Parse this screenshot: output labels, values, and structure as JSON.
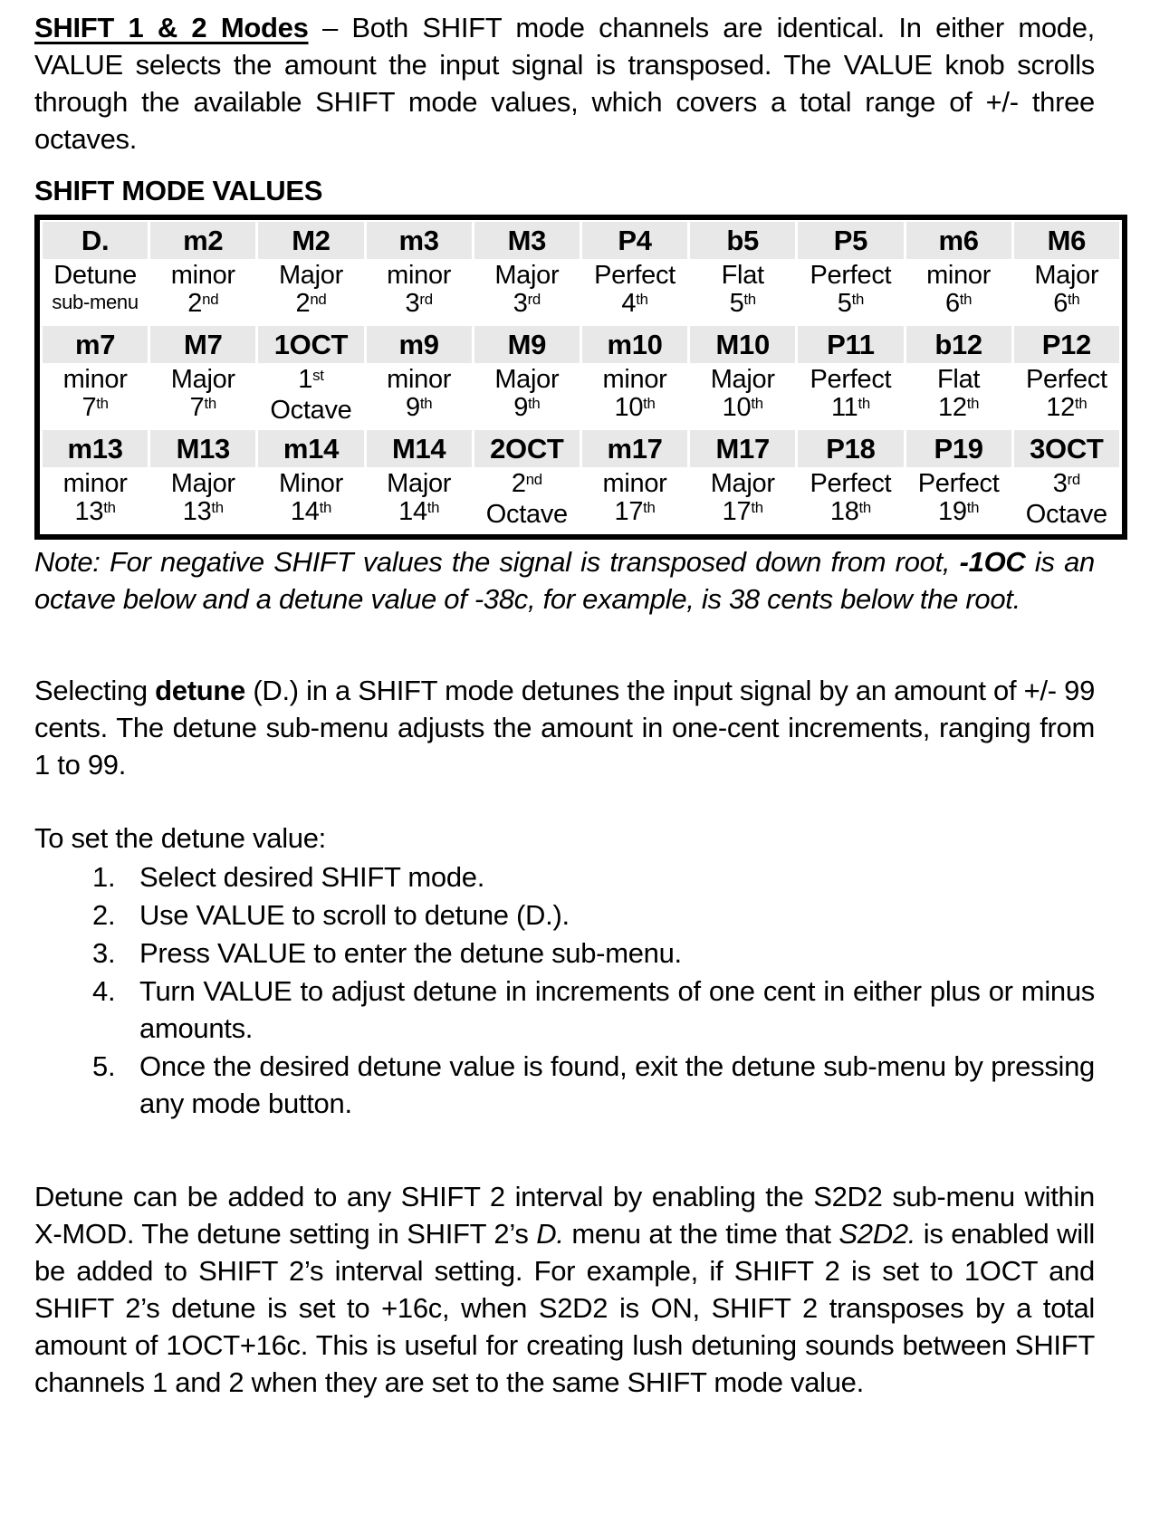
{
  "colors": {
    "page_bg": "#ffffff",
    "text": "#000000",
    "border": "#000000",
    "header_row_bg": "#e8e8e8"
  },
  "page": {
    "intro": [
      {
        "t": "SHIFT 1 & 2 Modes",
        "b": true,
        "u": true
      },
      {
        "t": " – Both SHIFT mode channels are identical. In either mode, VALUE selects the amount the input signal is transposed. The VALUE knob scrolls through the available SHIFT mode values, which covers a total range of +/- three octaves."
      }
    ],
    "table_title": "SHIFT MODE VALUES",
    "note": [
      {
        "t": "Note: For negative SHIFT values the signal is transposed down from root, ",
        "i": true
      },
      {
        "t": "-1OC",
        "b": true,
        "i": true
      },
      {
        "t": " is an octave below and a detune value of -38c, for example, is 38 cents below the root.",
        "i": true
      }
    ],
    "detune_paragraph": [
      {
        "t": "Selecting "
      },
      {
        "t": "detune",
        "b": true
      },
      {
        "t": " (D.) in a SHIFT mode detunes the input signal by an amount of +/- 99 cents. The detune sub-menu adjusts the amount in one-cent increments, ranging from 1 to 99."
      }
    ],
    "steps_intro": "To set the detune value:",
    "steps": [
      "Select desired SHIFT mode.",
      "Use VALUE to scroll to detune (D.).",
      "Press VALUE to enter the detune sub-menu.",
      "Turn VALUE to adjust detune in increments of one cent in either plus or minus amounts.",
      "Once the desired detune value is found, exit the detune sub-menu by pressing any mode button."
    ],
    "s2d2_paragraph": [
      {
        "t": "Detune can be added to any SHIFT 2 interval by enabling the S2D2 sub-menu within X-MOD. The detune setting in SHIFT 2’s "
      },
      {
        "t": "D.",
        "i": true
      },
      {
        "t": " menu at the time that "
      },
      {
        "t": "S2D2.",
        "i": true
      },
      {
        "t": " is enabled will be added to SHIFT 2’s interval setting. For example, if SHIFT 2 is set to 1OCT and SHIFT 2’s detune is set to +16c, when S2D2 is ON, SHIFT 2 transposes by a total amount of 1OCT+16c. This is useful for creating lush detuning sounds between SHIFT channels 1 and 2 when they are set to the same SHIFT mode value."
      }
    ]
  },
  "table": {
    "groups": [
      {
        "codes": [
          "D.",
          "m2",
          "M2",
          "m3",
          "M3",
          "P4",
          "b5",
          "P5",
          "m6",
          "M6"
        ],
        "descriptions": [
          {
            "lines": [
              "Detune",
              "sub-menu"
            ],
            "small_line2": true
          },
          {
            "lines": [
              "minor",
              "2[nd]"
            ]
          },
          {
            "lines": [
              "Major",
              "2[nd]"
            ]
          },
          {
            "lines": [
              "minor",
              "3[rd]"
            ]
          },
          {
            "lines": [
              "Major",
              "3[rd]"
            ]
          },
          {
            "lines": [
              "Perfect",
              "4[th]"
            ]
          },
          {
            "lines": [
              "Flat",
              "5[th]"
            ]
          },
          {
            "lines": [
              "Perfect",
              "5[th]"
            ]
          },
          {
            "lines": [
              "minor",
              "6[th]"
            ]
          },
          {
            "lines": [
              "Major",
              "6[th]"
            ]
          }
        ]
      },
      {
        "codes": [
          "m7",
          "M7",
          "1OCT",
          "m9",
          "M9",
          "m10",
          "M10",
          "P11",
          "b12",
          "P12"
        ],
        "descriptions": [
          {
            "lines": [
              "minor",
              "7[th]"
            ]
          },
          {
            "lines": [
              "Major",
              "7[th]"
            ]
          },
          {
            "lines": [
              "1[st]",
              "Octave"
            ]
          },
          {
            "lines": [
              "minor",
              "9[th]"
            ]
          },
          {
            "lines": [
              "Major",
              "9[th]"
            ]
          },
          {
            "lines": [
              "minor",
              "10[th]"
            ]
          },
          {
            "lines": [
              "Major",
              "10[th]"
            ]
          },
          {
            "lines": [
              "Perfect",
              "11[th]"
            ]
          },
          {
            "lines": [
              "Flat",
              "12[th]"
            ]
          },
          {
            "lines": [
              "Perfect",
              "12[th]"
            ]
          }
        ]
      },
      {
        "codes": [
          "m13",
          "M13",
          "m14",
          "M14",
          "2OCT",
          "m17",
          "M17",
          "P18",
          "P19",
          "3OCT"
        ],
        "descriptions": [
          {
            "lines": [
              "minor",
              "13[th]"
            ]
          },
          {
            "lines": [
              "Major",
              "13[th]"
            ]
          },
          {
            "lines": [
              "Minor",
              "14[th]"
            ]
          },
          {
            "lines": [
              "Major",
              "14[th]"
            ]
          },
          {
            "lines": [
              "2[nd]",
              "Octave"
            ]
          },
          {
            "lines": [
              "minor",
              "17[th]"
            ]
          },
          {
            "lines": [
              "Major",
              "17[th]"
            ]
          },
          {
            "lines": [
              "Perfect",
              "18[th]"
            ]
          },
          {
            "lines": [
              "Perfect",
              "19[th]"
            ]
          },
          {
            "lines": [
              "3[rd]",
              "Octave"
            ]
          }
        ]
      }
    ]
  }
}
